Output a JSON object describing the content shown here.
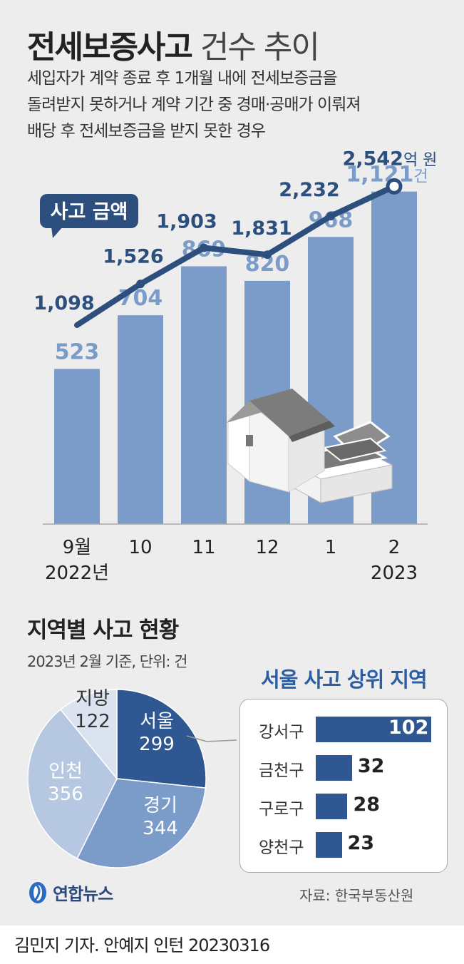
{
  "header": {
    "title_bold": "전세보증사고",
    "title_light": "건수 추이",
    "description_lines": [
      "세입자가 계약 종료 후 1개월 내에 전세보증금을",
      "돌려받지 못하거나 계약 기간 중 경매·공매가 이뤄져",
      "배당 후 전세보증금을 받지 못한 경우"
    ]
  },
  "chart_data": [
    {
      "type": "bar",
      "categories": [
        "9월",
        "10",
        "11",
        "12",
        "1",
        "2"
      ],
      "year_labels": {
        "first": "2022년",
        "last": "2023"
      },
      "series": [
        {
          "name": "",
          "values": [
            523,
            704,
            869,
            820,
            968,
            1121
          ],
          "labels": [
            "523",
            "704",
            "869",
            "820",
            "968",
            "1,121"
          ],
          "unit_last": "건"
        },
        {
          "name": "사고 금액",
          "type": "line",
          "values": [
            1098,
            1526,
            1903,
            1831,
            2232,
            2542
          ],
          "labels": [
            "1,098",
            "1,526",
            "1,903",
            "1,831",
            "2,232",
            "2,542"
          ],
          "unit_last": "억 원"
        }
      ],
      "colors": {
        "bar": "#7b9bc9",
        "line": "#2d4f7e"
      }
    },
    {
      "type": "pie",
      "title": "지역별 사고 현황",
      "subtitle": "2023년 2월 기준, 단위: 건",
      "slices": [
        {
          "name": "서울",
          "value": 299,
          "color": "#2f5893"
        },
        {
          "name": "경기",
          "value": 344,
          "color": "#7b9bc9"
        },
        {
          "name": "인천",
          "value": 356,
          "color": "#b6c7e1"
        },
        {
          "name": "지방",
          "value": 122,
          "color": "#dbe3f0"
        }
      ]
    },
    {
      "type": "bar",
      "orientation": "horizontal",
      "title": "서울 사고 상위 지역",
      "categories": [
        "강서구",
        "금천구",
        "구로구",
        "양천구"
      ],
      "values": [
        102,
        32,
        28,
        23
      ],
      "color": "#2f5893"
    }
  ],
  "footer": {
    "source": "자료: 한국부동산원",
    "logo_text": "연합뉴스",
    "credit": "김민지 기자. 안예지 인턴  20230316"
  }
}
